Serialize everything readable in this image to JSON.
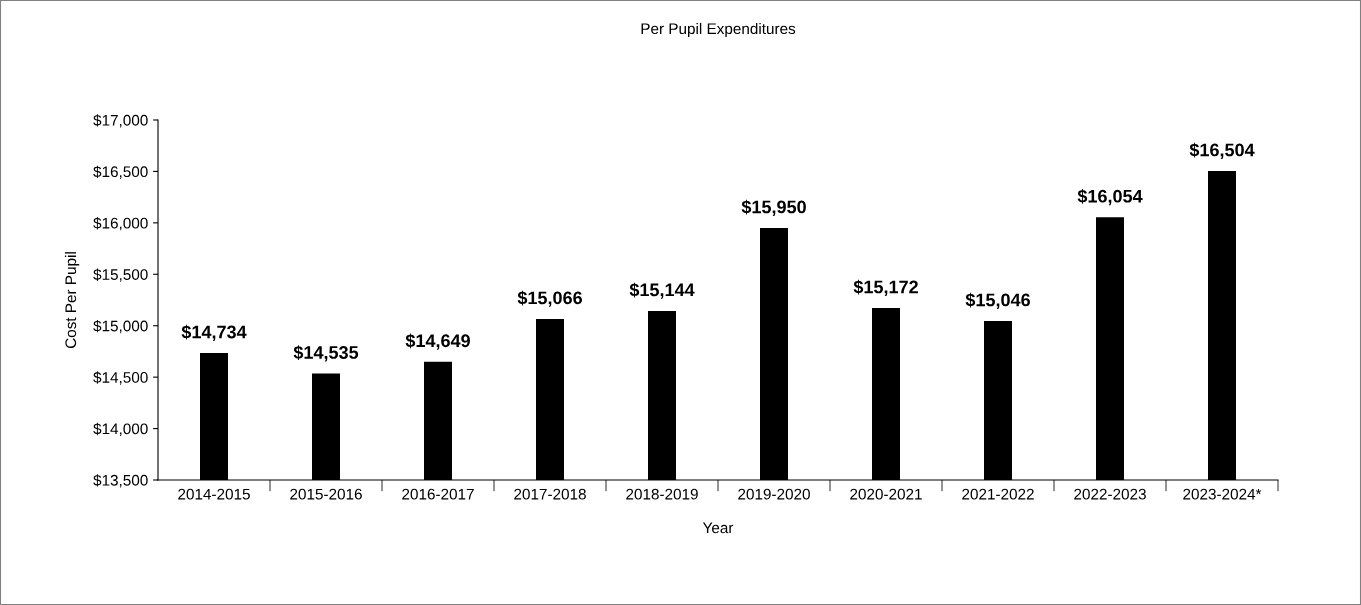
{
  "chart_data": {
    "type": "bar",
    "title": "Per Pupil Expenditures",
    "xlabel": "Year",
    "ylabel": "Cost Per Pupil",
    "categories": [
      "2014-2015",
      "2015-2016",
      "2016-2017",
      "2017-2018",
      "2018-2019",
      "2019-2020",
      "2020-2021",
      "2021-2022",
      "2022-2023",
      "2023-2024*"
    ],
    "values": [
      14734,
      14535,
      14649,
      15066,
      15144,
      15950,
      15172,
      15046,
      16054,
      16504
    ],
    "value_labels": [
      "$14,734",
      "$14,535",
      "$14,649",
      "$15,066",
      "$15,144",
      "$15,950",
      "$15,172",
      "$15,046",
      "$16,054",
      "$16,504"
    ],
    "color": "#000000",
    "ylim": [
      13500,
      17000
    ],
    "yticks": [
      {
        "value": 13500,
        "label": "$13,500"
      },
      {
        "value": 14000,
        "label": "$14,000"
      },
      {
        "value": 14500,
        "label": "$14,500"
      },
      {
        "value": 15000,
        "label": "$15,000"
      },
      {
        "value": 15500,
        "label": "$15,500"
      },
      {
        "value": 16000,
        "label": "$16,000"
      },
      {
        "value": 16500,
        "label": "$16,500"
      },
      {
        "value": 17000,
        "label": "$17,000"
      }
    ],
    "grid": false,
    "legend": false
  }
}
